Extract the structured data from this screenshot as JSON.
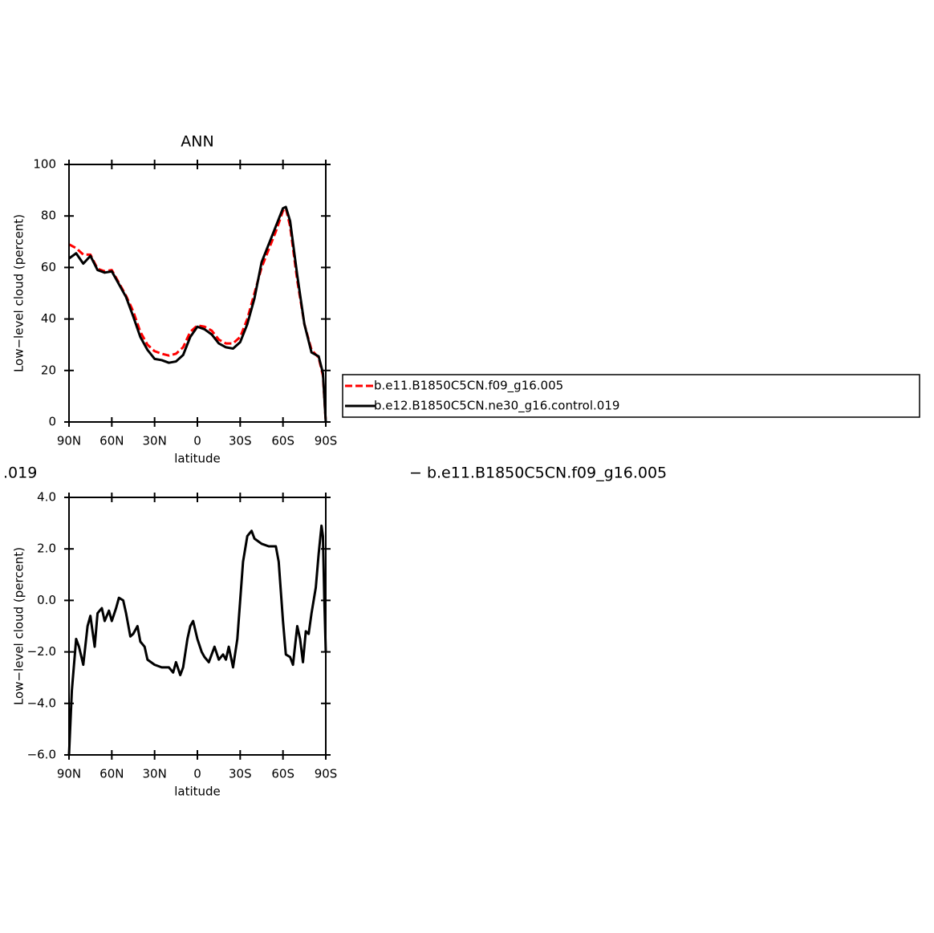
{
  "chart_data": [
    {
      "type": "line",
      "title": "ANN",
      "xlabel": "latitude",
      "ylabel": "Low−level cloud (percent)",
      "x": [
        90,
        85,
        80,
        75,
        70,
        65,
        60,
        55,
        50,
        45,
        40,
        35,
        30,
        25,
        20,
        15,
        10,
        5,
        0,
        -5,
        -10,
        -15,
        -20,
        -25,
        -30,
        -35,
        -40,
        -45,
        -50,
        -55,
        -60,
        -62,
        -65,
        -70,
        -75,
        -80,
        -85,
        -88,
        -90
      ],
      "series": [
        {
          "name": "b.e11.B1850C5CN.f09_g16.005",
          "color": "#ff0000",
          "dashed": true,
          "values": [
            69,
            67.5,
            65,
            65,
            59.5,
            58.5,
            59,
            54,
            49,
            43,
            35,
            30,
            27.5,
            26.5,
            25.8,
            26.5,
            29,
            35,
            37.5,
            37,
            35.5,
            32,
            30.5,
            30.5,
            33,
            40,
            50,
            60,
            67,
            74,
            82,
            83,
            76,
            55,
            38,
            28,
            25,
            18,
            0
          ]
        },
        {
          "name": "b.e12.B1850C5CN.ne30_g16.control.019",
          "color": "#000000",
          "dashed": false,
          "values": [
            63.5,
            65.5,
            61.5,
            64.5,
            59,
            58,
            58.5,
            53.5,
            48.5,
            41,
            33,
            28,
            24.5,
            24,
            23,
            23.5,
            26,
            33,
            37,
            36,
            34,
            30.5,
            29,
            28.5,
            31,
            38,
            48,
            62,
            69,
            76,
            83,
            83.5,
            78,
            57,
            38,
            27,
            25.5,
            19,
            0
          ]
        }
      ],
      "xlim": [
        90,
        -90
      ],
      "xticks": [
        {
          "value": 90,
          "label": "90N"
        },
        {
          "value": 60,
          "label": "60N"
        },
        {
          "value": 30,
          "label": "30N"
        },
        0,
        {
          "value": -30,
          "label": "30S"
        },
        {
          "value": -60,
          "label": "60S"
        },
        {
          "value": -90,
          "label": "90S"
        }
      ],
      "ylim": [
        0,
        100
      ],
      "yticks": [
        0,
        20,
        40,
        60,
        80,
        100
      ]
    },
    {
      "type": "line",
      "title_left": ".019",
      "title_right": "− b.e11.B1850C5CN.f09_g16.005",
      "xlabel": "latitude",
      "ylabel": "Low−level cloud (percent)",
      "x": [
        90,
        88,
        85,
        83,
        80,
        77,
        75,
        72,
        70,
        67,
        65,
        62,
        60,
        57,
        55,
        52,
        50,
        47,
        45,
        42,
        40,
        37,
        35,
        30,
        25,
        20,
        17,
        15,
        12,
        10,
        7,
        5,
        3,
        0,
        -3,
        -5,
        -8,
        -12,
        -15,
        -18,
        -20,
        -22,
        -25,
        -28,
        -30,
        -32,
        -35,
        -38,
        -40,
        -45,
        -50,
        -55,
        -57,
        -60,
        -62,
        -65,
        -67,
        -70,
        -72,
        -74,
        -76,
        -78,
        -80,
        -83,
        -85,
        -87,
        -88,
        -89,
        -90
      ],
      "series": [
        {
          "color": "#000000",
          "dashed": false,
          "values": [
            -6,
            -3.5,
            -1.5,
            -1.8,
            -2.5,
            -1,
            -0.6,
            -1.8,
            -0.5,
            -0.3,
            -0.8,
            -0.4,
            -0.8,
            -0.3,
            0.1,
            0,
            -0.5,
            -1.4,
            -1.3,
            -1,
            -1.6,
            -1.8,
            -2.3,
            -2.5,
            -2.6,
            -2.6,
            -2.8,
            -2.4,
            -2.9,
            -2.6,
            -1.5,
            -1,
            -0.8,
            -1.5,
            -2,
            -2.2,
            -2.4,
            -1.8,
            -2.3,
            -2.1,
            -2.3,
            -1.8,
            -2.6,
            -1.5,
            0,
            1.5,
            2.5,
            2.7,
            2.4,
            2.2,
            2.1,
            2.1,
            1.5,
            -0.8,
            -2.1,
            -2.2,
            -2.5,
            -1,
            -1.5,
            -2.4,
            -1.2,
            -1.3,
            -0.5,
            0.5,
            1.8,
            2.9,
            2.5,
            0,
            -2
          ]
        }
      ],
      "xlim": [
        90,
        -90
      ],
      "xticks": [
        {
          "value": 90,
          "label": "90N"
        },
        {
          "value": 60,
          "label": "60N"
        },
        {
          "value": 30,
          "label": "30N"
        },
        0,
        {
          "value": -30,
          "label": "30S"
        },
        {
          "value": -60,
          "label": "60S"
        },
        {
          "value": -90,
          "label": "90S"
        }
      ],
      "ylim": [
        -6,
        4
      ],
      "yticks": [
        {
          "value": -6,
          "label": "−6.0"
        },
        {
          "value": -4,
          "label": "−4.0"
        },
        {
          "value": -2,
          "label": "−2.0"
        },
        {
          "value": 0,
          "label": "0.0"
        },
        {
          "value": 2,
          "label": "2.0"
        },
        {
          "value": 4,
          "label": "4.0"
        }
      ]
    }
  ]
}
